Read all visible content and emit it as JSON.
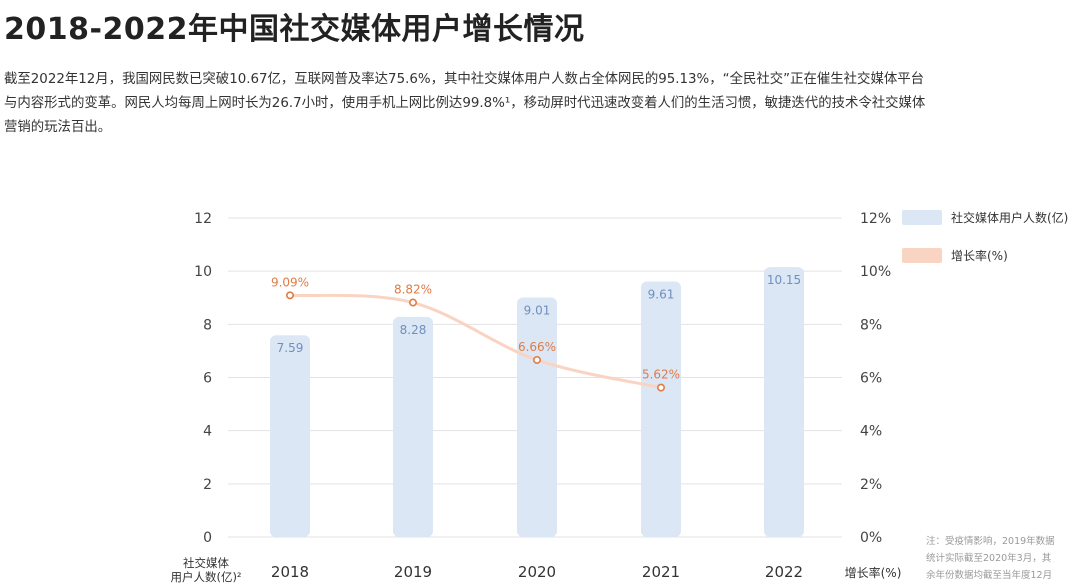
{
  "header": {
    "title": "2018-2022年中国社交媒体用户增长情况",
    "intro_lines": [
      "截至2022年12月，我国网民数已突破10.67亿，互联网普及率达75.6%，其中社交媒体用户人数占全体网民的95.13%，“全民社交”正在催生社交媒体平台",
      "与内容形式的变革。网民人均每周上网时长为26.7小时，使用手机上网比例达99.8%¹，移动屏时代迅速改变着人们的生活习惯，敏捷迭代的技术令社交媒体",
      "营销的玩法百出。"
    ]
  },
  "note": {
    "lines": [
      "注：受疫情影响，2019年数据",
      "统计实际截至2020年3月，其",
      "余年份数据均截至当年度12月"
    ]
  },
  "chart_data": {
    "type": "bar+line",
    "categories": [
      "2018",
      "2019",
      "2020",
      "2021",
      "2022"
    ],
    "series": [
      {
        "name": "社交媒体用户人数(亿)",
        "type": "bar",
        "axis": "left",
        "values": [
          7.59,
          8.28,
          9.01,
          9.61,
          10.15
        ],
        "labels": [
          "7.59",
          "8.28",
          "9.01",
          "9.61",
          "10.15"
        ],
        "color": "#dce7f5",
        "label_color": "#6f8fbd"
      },
      {
        "name": "增长率(%)",
        "type": "line",
        "axis": "right",
        "x": [
          "2018",
          "2019",
          "2020",
          "2021"
        ],
        "values": [
          9.09,
          8.82,
          6.66,
          5.62
        ],
        "labels": [
          "9.09%",
          "8.82%",
          "6.66%",
          "5.62%"
        ],
        "color": "#f9d4c2",
        "marker_color": "#e07b45",
        "label_color": "#e07b45"
      }
    ],
    "y_left": {
      "min": 0,
      "max": 12,
      "ticks": [
        "0",
        "2",
        "4",
        "6",
        "8",
        "10",
        "12"
      ]
    },
    "y_right": {
      "min": 0,
      "max": 12,
      "ticks": [
        "0%",
        "2%",
        "4%",
        "6%",
        "8%",
        "10%",
        "12%"
      ]
    },
    "ylabel_left": [
      "社交媒体",
      "用户人数(亿)²"
    ],
    "ylabel_right": "增长率(%)",
    "grid": true,
    "grid_color": "#e3e3e3",
    "legend_position": "top-right"
  }
}
